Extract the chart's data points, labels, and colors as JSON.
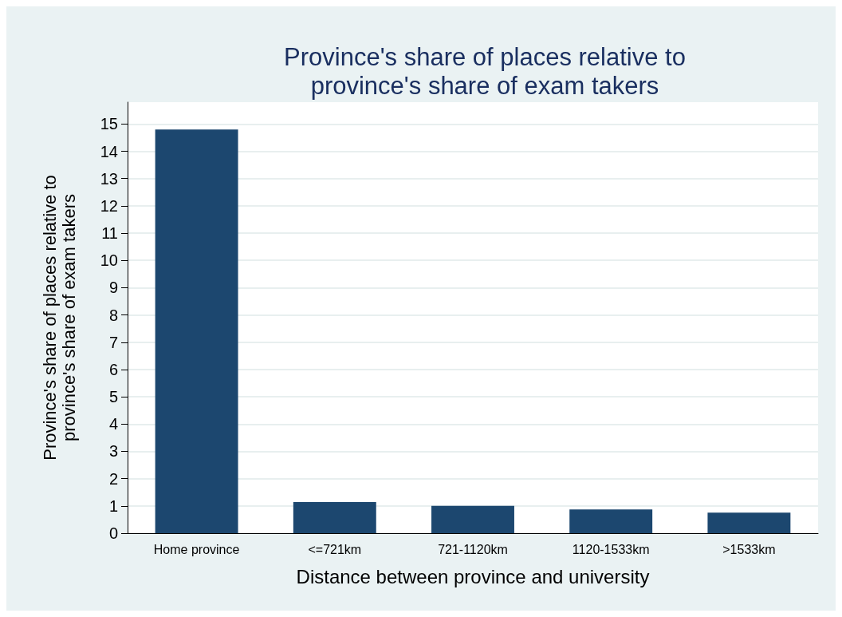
{
  "chart_data": {
    "type": "bar",
    "title": "Province's share of places relative to\nprovince's share of exam takers",
    "xlabel": "Distance between province and university",
    "ylabel": "Province's share of places relative to\nprovince's share of exam takers",
    "categories": [
      "Home province",
      "<=721km",
      "721-1120km",
      "1120-1533km",
      ">1533km"
    ],
    "values": [
      14.8,
      1.14,
      1.0,
      0.87,
      0.75
    ],
    "color": "#1c476f",
    "ylim": [
      0,
      15.8
    ],
    "yticks": [
      0,
      1,
      2,
      3,
      4,
      5,
      6,
      7,
      8,
      9,
      10,
      11,
      12,
      13,
      14,
      15
    ],
    "grid": "y"
  }
}
